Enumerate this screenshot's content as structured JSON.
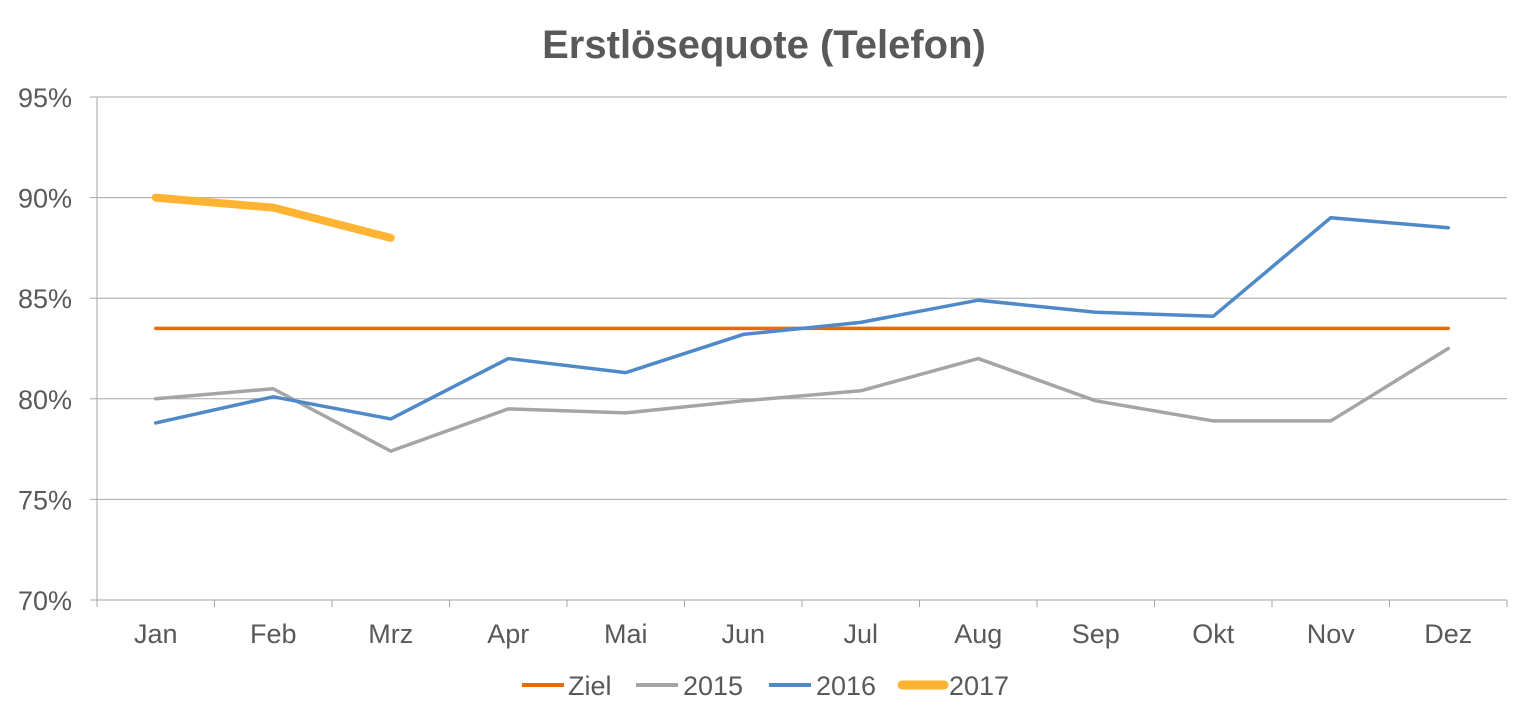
{
  "chart_data": {
    "type": "line",
    "title": "Erstlösequote (Telefon)",
    "xlabel": "",
    "ylabel": "",
    "categories": [
      "Jan",
      "Feb",
      "Mrz",
      "Apr",
      "Mai",
      "Jun",
      "Jul",
      "Aug",
      "Sep",
      "Okt",
      "Nov",
      "Dez"
    ],
    "ylim": [
      70,
      95
    ],
    "yticks": [
      70,
      75,
      80,
      85,
      90,
      95
    ],
    "ytick_labels": [
      "70%",
      "75%",
      "80%",
      "85%",
      "90%",
      "95%"
    ],
    "grid": true,
    "legend_position": "bottom",
    "series": [
      {
        "name": "Ziel",
        "color": "#E46C0A",
        "width": "normal",
        "values": [
          83.5,
          83.5,
          83.5,
          83.5,
          83.5,
          83.5,
          83.5,
          83.5,
          83.5,
          83.5,
          83.5,
          83.5
        ]
      },
      {
        "name": "2015",
        "color": "#A5A5A5",
        "width": "normal",
        "values": [
          80.0,
          80.5,
          77.4,
          79.5,
          79.3,
          79.9,
          80.4,
          82.0,
          79.9,
          78.9,
          78.9,
          82.5
        ]
      },
      {
        "name": "2016",
        "color": "#4F89C7",
        "width": "normal",
        "values": [
          78.8,
          80.1,
          79.0,
          82.0,
          81.3,
          83.2,
          83.8,
          84.9,
          84.3,
          84.1,
          89.0,
          88.5
        ]
      },
      {
        "name": "2017",
        "color": "#FFB332",
        "width": "thick",
        "values": [
          90.0,
          89.5,
          88.0,
          null,
          null,
          null,
          null,
          null,
          null,
          null,
          null,
          null
        ]
      }
    ]
  }
}
